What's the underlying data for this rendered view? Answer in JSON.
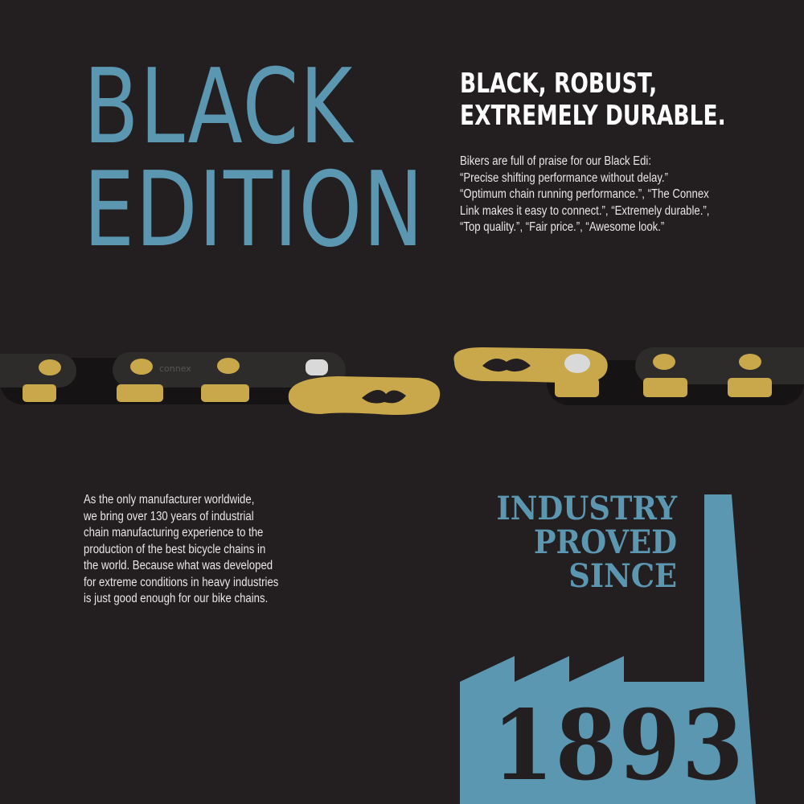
{
  "title": {
    "line1": "BLACK",
    "line2": "EDITION"
  },
  "headline": {
    "line1": "BLACK, ROBUST,",
    "line2": "EXTREMELY DURABLE."
  },
  "praise": [
    "Bikers are full of praise for our Black Edi:",
    "“Precise shifting performance without delay.”",
    "“Optimum chain running performance.”, “The Connex",
    "Link makes it easy to connect.”, “Extremely durable.”,",
    "“Top quality.”, “Fair price.”, “Awesome look.”"
  ],
  "chain": {
    "brand": "connex"
  },
  "history": [
    "As the only manufacturer worldwide,",
    "we bring over 130 years of industrial",
    "chain manufacturing experience to the",
    "production of the best bicycle chains in",
    "the world. Because what was developed",
    "for extreme conditions in heavy industries",
    "is just good enough for our bike chains."
  ],
  "industry": {
    "line1": "INDUSTRY",
    "line2": "PROVED",
    "line3": "SINCE",
    "year": "1893"
  },
  "colors": {
    "background": "#231f20",
    "accent": "#5b97b1",
    "gold": "#c9a84c"
  }
}
